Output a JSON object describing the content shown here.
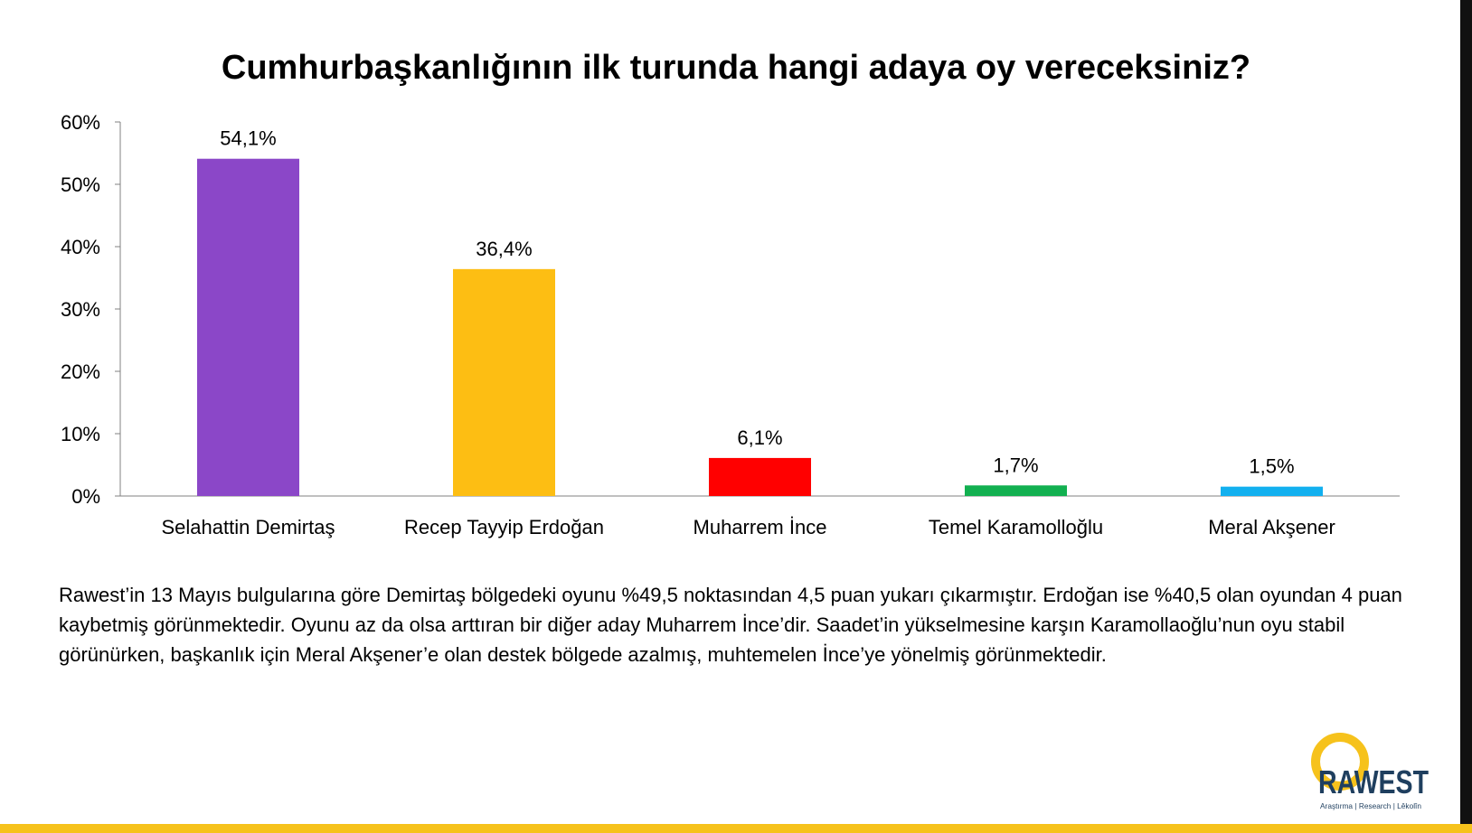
{
  "chart_data": {
    "type": "bar",
    "title": "Cumhurbaşkanlığının ilk turunda hangi adaya oy vereceksiniz?",
    "categories": [
      "Selahattin Demirtaş",
      "Recep Tayyip Erdoğan",
      "Muharrem İnce",
      "Temel Karamolloğlu",
      "Meral Akşener"
    ],
    "values": [
      54.1,
      36.4,
      6.1,
      1.7,
      1.5
    ],
    "value_labels": [
      "54,1%",
      "36,4%",
      "6,1%",
      "1,7%",
      "1,5%"
    ],
    "colors": [
      "#8B47C8",
      "#FDBE13",
      "#FF0000",
      "#12B050",
      "#12B0EF"
    ],
    "ylim": [
      0,
      60
    ],
    "yticks": [
      "0%",
      "10%",
      "20%",
      "30%",
      "40%",
      "50%",
      "60%"
    ],
    "grid": false,
    "xlabel": "",
    "ylabel": ""
  },
  "description": "Rawest’in 13 Mayıs bulgularına göre Demirtaş bölgedeki oyunu %49,5 noktasından 4,5 puan yukarı çıkarmıştır. Erdoğan ise %40,5 olan oyundan 4 puan kaybetmiş görünmektedir. Oyunu az da olsa arttıran bir diğer aday Muharrem İnce’dir. Saadet’in yükselmesine karşın Karamollaoğlu’nun oyu stabil görünürken, başkanlık için Meral Akşener’e olan destek bölgede azalmış, muhtemelen İnce’ye yönelmiş görünmektedir.",
  "logo": {
    "name": "RAWEST",
    "tagline": "Araştırma | Research | Lêkolîn",
    "accent_color": "#F6C21C",
    "text_color": "#1F3F5F"
  },
  "colors": {
    "bottom_bar": "#F6C21C",
    "right_bar": "#111111"
  }
}
